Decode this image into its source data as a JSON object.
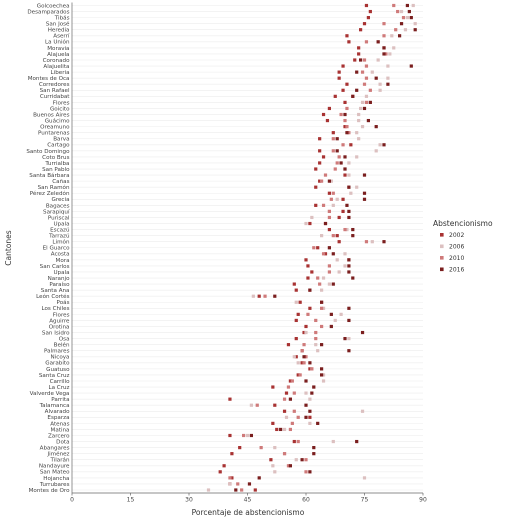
{
  "chart_data": {
    "type": "scatter",
    "xlabel": "Porcentaje de abstencionismo",
    "ylabel": "Cantones",
    "xlim": [
      0,
      90
    ],
    "xticks": [
      0,
      15,
      30,
      45,
      60,
      75,
      90
    ],
    "grid": "horizontal",
    "legend": {
      "title": "Abstencionismo",
      "placement": "right"
    },
    "colors": {
      "2002": "#a83232",
      "2006": "#dcc0c0",
      "2010": "#cf7a7a",
      "2016": "#7a1e1e"
    },
    "categories": [
      "Golcoechea",
      "Desamparados",
      "Tibás",
      "San José",
      "Heredia",
      "Aserrí",
      "La Unión",
      "Moravia",
      "Alajuela",
      "Coronado",
      "Alajuelita",
      "Liberia",
      "Montes de Oca",
      "Corredores",
      "San Rafael",
      "Curridabat",
      "Flores",
      "Goicito",
      "Buenos Aires",
      "Guácimo",
      "Oreamuno",
      "Puntarenas",
      "Barva",
      "Cartago",
      "Santo Domingo",
      "Coto Brus",
      "Turrialba",
      "San Pablo",
      "Santa Bárbara",
      "Cañas",
      "San Ramón",
      "Pérez Zeledón",
      "Grecia",
      "Bagaces",
      "Sarapiquí",
      "Puriscal",
      "Upala",
      "Escazú",
      "Tarrazú",
      "Limón",
      "El Guarco",
      "Acosta",
      "Mora",
      "San Carlos",
      "Upala",
      "Naranjo",
      "Paraíso",
      "Santa Ana",
      "León Cortés",
      "Poás",
      "Los Chiles",
      "Flores",
      "Aguirre",
      "Orotina",
      "San Isidro",
      "Osa",
      "Belén",
      "Palmares",
      "Nicoya",
      "Garabito",
      "Guatuso",
      "Santa Cruz",
      "Carrillo",
      "La Cruz",
      "Valverde Vega",
      "Parrita",
      "Talamanca",
      "Alvarado",
      "Esparza",
      "Atenas",
      "Matina",
      "Zarcero",
      "Dota",
      "Abangares",
      "Jiménez",
      "Tilarán",
      "Nandayure",
      "San Mateo",
      "Hojancha",
      "Turrubares",
      "Montes de Oro"
    ],
    "series": [
      {
        "name": "2002",
        "values": [
          75.5,
          76.5,
          76,
          75,
          74,
          70.5,
          71,
          73.5,
          73.5,
          72.5,
          69.5,
          68.5,
          68.5,
          70.5,
          69.5,
          67.5,
          70,
          66,
          64.5,
          65.5,
          70,
          67,
          63.5,
          71.5,
          63.5,
          64.5,
          63.5,
          62.5,
          70,
          63.5,
          62.5,
          66,
          69.5,
          62.5,
          69.5,
          68.5,
          61,
          66,
          68,
          68.5,
          63,
          65,
          60,
          60.5,
          61.5,
          60.5,
          57,
          57.5,
          48,
          58.5,
          61,
          58,
          57.5,
          60,
          59.5,
          57.5,
          55.5,
          59,
          57.5,
          59,
          61,
          58,
          56,
          51.5,
          55,
          40.5,
          52,
          54.5,
          61,
          51.5,
          52.5,
          40.5,
          57,
          43,
          41,
          51,
          39,
          38,
          41,
          40.5,
          47
        ]
      },
      {
        "name": "2006",
        "values": [
          87.5,
          84.5,
          86,
          88,
          85.5,
          82,
          78.5,
          82.5,
          81.5,
          78.5,
          81,
          77,
          81,
          79,
          79,
          75.5,
          74.5,
          74,
          73.5,
          73.5,
          74.5,
          73,
          73.5,
          79,
          78,
          73,
          71,
          70,
          71,
          66.5,
          73,
          71.5,
          68,
          67,
          66,
          61.5,
          60,
          70.5,
          64,
          77,
          66,
          70,
          68,
          70,
          68.5,
          64.5,
          66,
          64,
          46.5,
          57.5,
          64.5,
          69,
          67.5,
          66.5,
          60,
          71,
          62.5,
          63,
          57,
          58,
          61.5,
          64.5,
          64.5,
          62,
          60,
          61,
          46,
          74.5,
          55,
          61,
          54.5,
          45,
          67,
          52,
          54.5,
          57.5,
          51.5,
          52,
          75,
          40.5,
          35
        ]
      },
      {
        "name": "2010",
        "values": [
          82.5,
          83.5,
          85,
          80,
          83,
          80,
          75.5,
          80,
          80.5,
          75,
          75.5,
          74.5,
          75.5,
          75,
          76.5,
          72,
          75.5,
          70.5,
          69,
          70,
          70.5,
          71,
          67,
          69.5,
          67,
          68.5,
          68,
          67.5,
          65,
          64,
          71,
          67,
          66.5,
          64.5,
          66,
          66,
          65,
          70,
          67,
          75.5,
          62,
          64.5,
          71,
          66,
          66,
          63,
          63.5,
          61,
          49.5,
          64,
          64,
          60.5,
          62.5,
          64,
          62.5,
          62.5,
          59.5,
          59,
          60,
          59.5,
          61.5,
          58.5,
          56.5,
          55.5,
          57,
          54.5,
          47.5,
          57,
          58,
          56.5,
          56,
          44,
          58,
          48.5,
          54.5,
          60,
          55.5,
          60,
          40.5,
          42.5,
          43.5
        ]
      },
      {
        "name": "2016",
        "values": [
          86,
          86.5,
          87,
          84.5,
          88,
          84,
          78.5,
          80,
          80,
          74,
          87,
          73,
          78,
          81,
          73,
          72,
          76.5,
          75,
          70,
          76,
          78,
          70.5,
          68,
          80,
          68,
          70,
          69,
          70,
          75,
          66,
          71,
          75,
          75,
          70.5,
          71,
          71,
          65,
          72,
          72,
          80,
          66,
          67,
          71,
          71,
          71,
          72,
          67,
          61,
          52,
          64,
          71,
          66.5,
          71,
          66.5,
          74.5,
          70,
          64,
          71,
          59.5,
          61,
          64,
          64,
          60,
          62,
          61.5,
          56,
          60,
          61,
          60,
          63,
          53.5,
          46,
          73,
          62,
          62,
          59,
          56,
          61,
          48,
          45.5,
          42
        ]
      }
    ]
  }
}
